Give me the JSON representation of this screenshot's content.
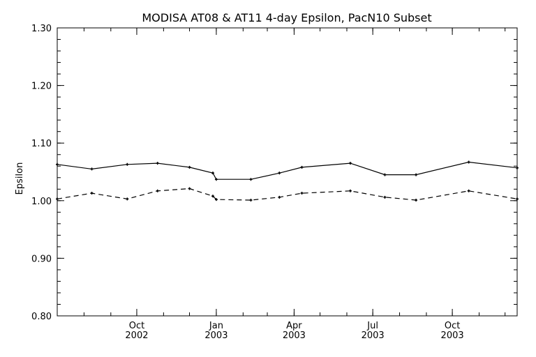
{
  "chart_data": {
    "type": "line",
    "title": "MODISA AT08 & AT11 4-day Epsilon, PacN10 Subset",
    "xlabel": "",
    "ylabel": "Epsilon",
    "ylim": [
      0.8,
      1.3
    ],
    "xlim": [
      "2002-07-01",
      "2003-12-15"
    ],
    "y_ticks": [
      "0.80",
      "0.90",
      "1.00",
      "1.10",
      "1.20",
      "1.30"
    ],
    "x_ticks": [
      {
        "date": "2002-10-01",
        "month": "Oct",
        "year": "2002"
      },
      {
        "date": "2003-01-01",
        "month": "Jan",
        "year": "2003"
      },
      {
        "date": "2003-04-01",
        "month": "Apr",
        "year": "2003"
      },
      {
        "date": "2003-07-01",
        "month": "Jul",
        "year": "2003"
      },
      {
        "date": "2003-10-01",
        "month": "Oct",
        "year": "2003"
      }
    ],
    "grid": false,
    "series": [
      {
        "line_style": "solid",
        "points": [
          {
            "x": "2002-07-01",
            "y": 1.063
          },
          {
            "x": "2002-08-10",
            "y": 1.055
          },
          {
            "x": "2002-09-20",
            "y": 1.063
          },
          {
            "x": "2002-10-25",
            "y": 1.065
          },
          {
            "x": "2002-12-01",
            "y": 1.058
          },
          {
            "x": "2002-12-28",
            "y": 1.048
          },
          {
            "x": "2003-01-01",
            "y": 1.037
          },
          {
            "x": "2003-02-10",
            "y": 1.037
          },
          {
            "x": "2003-03-15",
            "y": 1.048
          },
          {
            "x": "2003-04-10",
            "y": 1.058
          },
          {
            "x": "2003-06-05",
            "y": 1.065
          },
          {
            "x": "2003-07-15",
            "y": 1.045
          },
          {
            "x": "2003-08-20",
            "y": 1.045
          },
          {
            "x": "2003-10-20",
            "y": 1.067
          },
          {
            "x": "2003-12-15",
            "y": 1.057
          }
        ]
      },
      {
        "line_style": "dashed",
        "points": [
          {
            "x": "2002-07-01",
            "y": 1.003
          },
          {
            "x": "2002-08-10",
            "y": 1.013
          },
          {
            "x": "2002-09-20",
            "y": 1.003
          },
          {
            "x": "2002-10-25",
            "y": 1.017
          },
          {
            "x": "2002-12-01",
            "y": 1.021
          },
          {
            "x": "2002-12-28",
            "y": 1.008
          },
          {
            "x": "2003-01-01",
            "y": 1.002
          },
          {
            "x": "2003-02-10",
            "y": 1.001
          },
          {
            "x": "2003-03-15",
            "y": 1.006
          },
          {
            "x": "2003-04-10",
            "y": 1.013
          },
          {
            "x": "2003-06-05",
            "y": 1.017
          },
          {
            "x": "2003-07-15",
            "y": 1.006
          },
          {
            "x": "2003-08-20",
            "y": 1.001
          },
          {
            "x": "2003-10-20",
            "y": 1.017
          },
          {
            "x": "2003-12-15",
            "y": 1.003
          }
        ]
      }
    ]
  }
}
